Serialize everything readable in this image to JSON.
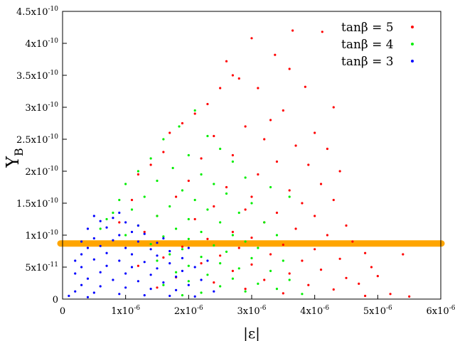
{
  "chart_data": {
    "type": "scatter",
    "title": "",
    "xlabel": "|ε|",
    "ylabel": "Y",
    "ylabel_sub": "B",
    "xlim": [
      0,
      6e-06
    ],
    "ylim": [
      0,
      4.5e-10
    ],
    "grid": false,
    "legend_position": "top-right",
    "x_ticks": [
      {
        "value": 0,
        "mant": "0",
        "exp": ""
      },
      {
        "value": 1e-06,
        "mant": "1x10",
        "exp": "-6"
      },
      {
        "value": 2e-06,
        "mant": "2x10",
        "exp": "-6"
      },
      {
        "value": 3e-06,
        "mant": "3x10",
        "exp": "-6"
      },
      {
        "value": 4e-06,
        "mant": "4x10",
        "exp": "-6"
      },
      {
        "value": 5e-06,
        "mant": "5x10",
        "exp": "-6"
      },
      {
        "value": 6e-06,
        "mant": "6x10",
        "exp": "-6"
      }
    ],
    "y_ticks": [
      {
        "value": 0,
        "mant": "0",
        "exp": ""
      },
      {
        "value": 5e-11,
        "mant": "5x10",
        "exp": "-11"
      },
      {
        "value": 1e-10,
        "mant": "1x10",
        "exp": "-10"
      },
      {
        "value": 1.5e-10,
        "mant": "1.5x10",
        "exp": "-10"
      },
      {
        "value": 2e-10,
        "mant": "2x10",
        "exp": "-10"
      },
      {
        "value": 2.5e-10,
        "mant": "2.5x10",
        "exp": "-10"
      },
      {
        "value": 3e-10,
        "mant": "3x10",
        "exp": "-10"
      },
      {
        "value": 3.5e-10,
        "mant": "3.5x10",
        "exp": "-10"
      },
      {
        "value": 4e-10,
        "mant": "4x10",
        "exp": "-10"
      },
      {
        "value": 4.5e-10,
        "mant": "4.5x10",
        "exp": "-10"
      }
    ],
    "observed_band": {
      "y": 8.7e-11,
      "color": "#ffa500"
    },
    "series": [
      {
        "name": "tanβ = 5",
        "color": "#ff0000",
        "points": [
          [
            3e-06,
            4.08e-10
          ],
          [
            3.65e-06,
            4.2e-10
          ],
          [
            4.12e-06,
            4.18e-10
          ],
          [
            2.6e-06,
            3.72e-10
          ],
          [
            3.37e-06,
            3.82e-10
          ],
          [
            3.6e-06,
            3.6e-10
          ],
          [
            2.8e-06,
            3.45e-10
          ],
          [
            2.5e-06,
            3.3e-10
          ],
          [
            2.7e-06,
            3.5e-10
          ],
          [
            3.1e-06,
            3.3e-10
          ],
          [
            3.85e-06,
            3.32e-10
          ],
          [
            2.3e-06,
            3.05e-10
          ],
          [
            4.3e-06,
            3e-10
          ],
          [
            2.1e-06,
            2.9e-10
          ],
          [
            1.9e-06,
            2.75e-10
          ],
          [
            3.5e-06,
            2.95e-10
          ],
          [
            3.3e-06,
            2.8e-10
          ],
          [
            4e-06,
            2.6e-10
          ],
          [
            2.9e-06,
            2.7e-10
          ],
          [
            1.7e-06,
            2.6e-10
          ],
          [
            3.2e-06,
            2.5e-10
          ],
          [
            2.4e-06,
            2.55e-10
          ],
          [
            4.2e-06,
            2.35e-10
          ],
          [
            3.7e-06,
            2.4e-10
          ],
          [
            1.6e-06,
            2.3e-10
          ],
          [
            4.4e-06,
            2e-10
          ],
          [
            3.9e-06,
            2.1e-10
          ],
          [
            2.2e-06,
            2.2e-10
          ],
          [
            2.7e-06,
            2.25e-10
          ],
          [
            3.4e-06,
            2.15e-10
          ],
          [
            1.4e-06,
            2.1e-10
          ],
          [
            1.2e-06,
            1.95e-10
          ],
          [
            3.1e-06,
            1.95e-10
          ],
          [
            4.1e-06,
            1.8e-10
          ],
          [
            2e-06,
            1.85e-10
          ],
          [
            2.6e-06,
            1.75e-10
          ],
          [
            3.6e-06,
            1.7e-10
          ],
          [
            1.8e-06,
            1.6e-10
          ],
          [
            3e-06,
            1.6e-10
          ],
          [
            4.3e-06,
            1.55e-10
          ],
          [
            3.8e-06,
            1.5e-10
          ],
          [
            2.4e-06,
            1.45e-10
          ],
          [
            1.1e-06,
            1.55e-10
          ],
          [
            2.9e-06,
            1.4e-10
          ],
          [
            3.4e-06,
            1.35e-10
          ],
          [
            4e-06,
            1.3e-10
          ],
          [
            1.5e-06,
            1.3e-10
          ],
          [
            2.1e-06,
            1.25e-10
          ],
          [
            3.2e-06,
            1.2e-10
          ],
          [
            4.5e-06,
            1.15e-10
          ],
          [
            3.7e-06,
            1.1e-10
          ],
          [
            2.7e-06,
            1.05e-10
          ],
          [
            1.3e-06,
            1.05e-10
          ],
          [
            4.2e-06,
            1e-10
          ],
          [
            3e-06,
            9.6e-11
          ],
          [
            2.3e-06,
            9.4e-11
          ],
          [
            4.6e-06,
            9e-11
          ],
          [
            3.5e-06,
            8.5e-11
          ],
          [
            1.9e-06,
            8.2e-11
          ],
          [
            2.8e-06,
            8e-11
          ],
          [
            4e-06,
            7.8e-11
          ],
          [
            4.8e-06,
            7.2e-11
          ],
          [
            3.3e-06,
            7e-11
          ],
          [
            2.5e-06,
            6.8e-11
          ],
          [
            1.6e-06,
            6.5e-11
          ],
          [
            5.4e-06,
            7e-11
          ],
          [
            4.4e-06,
            6.3e-11
          ],
          [
            3.8e-06,
            6e-11
          ],
          [
            2.2e-06,
            5.6e-11
          ],
          [
            3e-06,
            5.4e-11
          ],
          [
            4.9e-06,
            5e-11
          ],
          [
            1.2e-06,
            5.2e-11
          ],
          [
            4.1e-06,
            4.6e-11
          ],
          [
            2.7e-06,
            4.4e-11
          ],
          [
            3.6e-06,
            4e-11
          ],
          [
            5e-06,
            3.6e-11
          ],
          [
            4.5e-06,
            3.3e-11
          ],
          [
            1.8e-06,
            3.4e-11
          ],
          [
            3.2e-06,
            3e-11
          ],
          [
            2.4e-06,
            2.6e-11
          ],
          [
            4.7e-06,
            2.4e-11
          ],
          [
            3.9e-06,
            2.2e-11
          ],
          [
            4.3e-06,
            1.5e-11
          ],
          [
            2.9e-06,
            1.6e-11
          ],
          [
            5.2e-06,
            8e-12
          ],
          [
            5.5e-06,
            4e-12
          ],
          [
            4.8e-06,
            5e-12
          ],
          [
            3.5e-06,
            9e-12
          ],
          [
            1.5e-06,
            1.8e-11
          ],
          [
            9e-07,
            1.2e-10
          ]
        ]
      },
      {
        "name": "tanβ = 4",
        "color": "#00ee00",
        "points": [
          [
            2.1e-06,
            2.95e-10
          ],
          [
            1.85e-06,
            2.7e-10
          ],
          [
            2.3e-06,
            2.55e-10
          ],
          [
            1.6e-06,
            2.5e-10
          ],
          [
            2.5e-06,
            2.35e-10
          ],
          [
            1.4e-06,
            2.2e-10
          ],
          [
            2e-06,
            2.25e-10
          ],
          [
            2.7e-06,
            2.15e-10
          ],
          [
            1.2e-06,
            2e-10
          ],
          [
            1.75e-06,
            2.05e-10
          ],
          [
            2.2e-06,
            1.95e-10
          ],
          [
            2.9e-06,
            1.9e-10
          ],
          [
            1e-06,
            1.8e-10
          ],
          [
            1.5e-06,
            1.85e-10
          ],
          [
            2.4e-06,
            1.8e-10
          ],
          [
            1.9e-06,
            1.7e-10
          ],
          [
            2.6e-06,
            1.65e-10
          ],
          [
            1.3e-06,
            1.6e-10
          ],
          [
            9e-07,
            1.55e-10
          ],
          [
            2.1e-06,
            1.55e-10
          ],
          [
            3e-06,
            1.5e-10
          ],
          [
            1.7e-06,
            1.45e-10
          ],
          [
            2.3e-06,
            1.4e-10
          ],
          [
            8e-07,
            1.35e-10
          ],
          [
            1.1e-06,
            1.4e-10
          ],
          [
            2.8e-06,
            1.35e-10
          ],
          [
            1.5e-06,
            1.3e-10
          ],
          [
            2e-06,
            1.25e-10
          ],
          [
            2.5e-06,
            1.2e-10
          ],
          [
            3.2e-06,
            1.2e-10
          ],
          [
            1.2e-06,
            1.15e-10
          ],
          [
            1.8e-06,
            1.1e-10
          ],
          [
            2.2e-06,
            1.05e-10
          ],
          [
            2.7e-06,
            1e-10
          ],
          [
            3.4e-06,
            1e-10
          ],
          [
            1.6e-06,
            9.8e-11
          ],
          [
            2e-06,
            9.4e-11
          ],
          [
            2.9e-06,
            9e-11
          ],
          [
            1.4e-06,
            8.6e-11
          ],
          [
            2.4e-06,
            8.4e-11
          ],
          [
            3.1e-06,
            8e-11
          ],
          [
            1.9e-06,
            7.8e-11
          ],
          [
            2.6e-06,
            7.4e-11
          ],
          [
            1.7e-06,
            7e-11
          ],
          [
            2.2e-06,
            6.6e-11
          ],
          [
            3e-06,
            6.4e-11
          ],
          [
            3.5e-06,
            6e-11
          ],
          [
            1.5e-06,
            6e-11
          ],
          [
            2.5e-06,
            5.6e-11
          ],
          [
            2e-06,
            5.2e-11
          ],
          [
            2.8e-06,
            4.8e-11
          ],
          [
            3.3e-06,
            4.4e-11
          ],
          [
            1.8e-06,
            4.2e-11
          ],
          [
            2.3e-06,
            3.8e-11
          ],
          [
            2.7e-06,
            3.2e-11
          ],
          [
            3.6e-06,
            3e-11
          ],
          [
            2e-06,
            2.8e-11
          ],
          [
            3.1e-06,
            2.4e-11
          ],
          [
            2.5e-06,
            2e-11
          ],
          [
            1.6e-06,
            2.2e-11
          ],
          [
            3.4e-06,
            1.6e-11
          ],
          [
            2.9e-06,
            1.2e-11
          ],
          [
            2.2e-06,
            1e-11
          ],
          [
            3.8e-06,
            8e-12
          ],
          [
            1.9e-06,
            6e-12
          ],
          [
            7e-07,
            1.25e-10
          ],
          [
            6e-07,
            1.1e-10
          ],
          [
            1e-06,
            1e-10
          ],
          [
            3.6e-06,
            1.6e-10
          ],
          [
            3.3e-06,
            1.75e-10
          ]
        ]
      },
      {
        "name": "tanβ = 3",
        "color": "#0000ff",
        "points": [
          [
            5e-07,
            1.3e-10
          ],
          [
            6e-07,
            1.22e-10
          ],
          [
            8e-07,
            1.27e-10
          ],
          [
            1e-06,
            1.2e-10
          ],
          [
            4e-07,
            1.1e-10
          ],
          [
            7e-07,
            1.12e-10
          ],
          [
            1.1e-06,
            1.05e-10
          ],
          [
            9e-07,
            1e-10
          ],
          [
            1.3e-06,
            1.02e-10
          ],
          [
            3e-07,
            9e-11
          ],
          [
            5e-07,
            9.5e-11
          ],
          [
            8e-07,
            9.2e-11
          ],
          [
            1.2e-06,
            9e-11
          ],
          [
            1.5e-06,
            8.8e-11
          ],
          [
            4e-07,
            8e-11
          ],
          [
            6e-07,
            8.3e-11
          ],
          [
            1e-06,
            8e-11
          ],
          [
            1.4e-06,
            7.8e-11
          ],
          [
            1.7e-06,
            7.5e-11
          ],
          [
            3e-07,
            7e-11
          ],
          [
            7e-07,
            7.2e-11
          ],
          [
            1.1e-06,
            7e-11
          ],
          [
            1.5e-06,
            6.8e-11
          ],
          [
            1.9e-06,
            6.4e-11
          ],
          [
            2e-07,
            6e-11
          ],
          [
            5e-07,
            6.2e-11
          ],
          [
            9e-07,
            6e-11
          ],
          [
            1.3e-06,
            5.8e-11
          ],
          [
            1.7e-06,
            5.6e-11
          ],
          [
            2.1e-06,
            5e-11
          ],
          [
            3e-07,
            5e-11
          ],
          [
            7e-07,
            5.2e-11
          ],
          [
            1.1e-06,
            5e-11
          ],
          [
            1.5e-06,
            4.8e-11
          ],
          [
            1.9e-06,
            4.4e-11
          ],
          [
            2e-07,
            4e-11
          ],
          [
            6e-07,
            4.2e-11
          ],
          [
            1e-06,
            4e-11
          ],
          [
            1.4e-06,
            3.8e-11
          ],
          [
            1.8e-06,
            3.5e-11
          ],
          [
            2.2e-06,
            3e-11
          ],
          [
            4e-07,
            3.2e-11
          ],
          [
            8e-07,
            3e-11
          ],
          [
            1.2e-06,
            2.8e-11
          ],
          [
            1.6e-06,
            2.6e-11
          ],
          [
            2e-06,
            2.2e-11
          ],
          [
            3e-07,
            2.2e-11
          ],
          [
            6e-07,
            2e-11
          ],
          [
            1e-06,
            1.8e-11
          ],
          [
            1.4e-06,
            1.6e-11
          ],
          [
            1.8e-06,
            1.4e-11
          ],
          [
            2.4e-06,
            1.2e-11
          ],
          [
            2e-07,
            1.2e-11
          ],
          [
            5e-07,
            1e-11
          ],
          [
            9e-07,
            8e-12
          ],
          [
            1.3e-06,
            6e-12
          ],
          [
            1.7e-06,
            5e-12
          ],
          [
            2.1e-06,
            4e-12
          ],
          [
            1e-07,
            5e-12
          ],
          [
            4e-07,
            3e-12
          ],
          [
            1.6e-06,
            9.5e-11
          ],
          [
            2e-06,
            8e-11
          ],
          [
            2.3e-06,
            6e-11
          ],
          [
            9e-07,
            1.35e-10
          ],
          [
            1.2e-06,
            1.15e-10
          ]
        ]
      }
    ]
  }
}
